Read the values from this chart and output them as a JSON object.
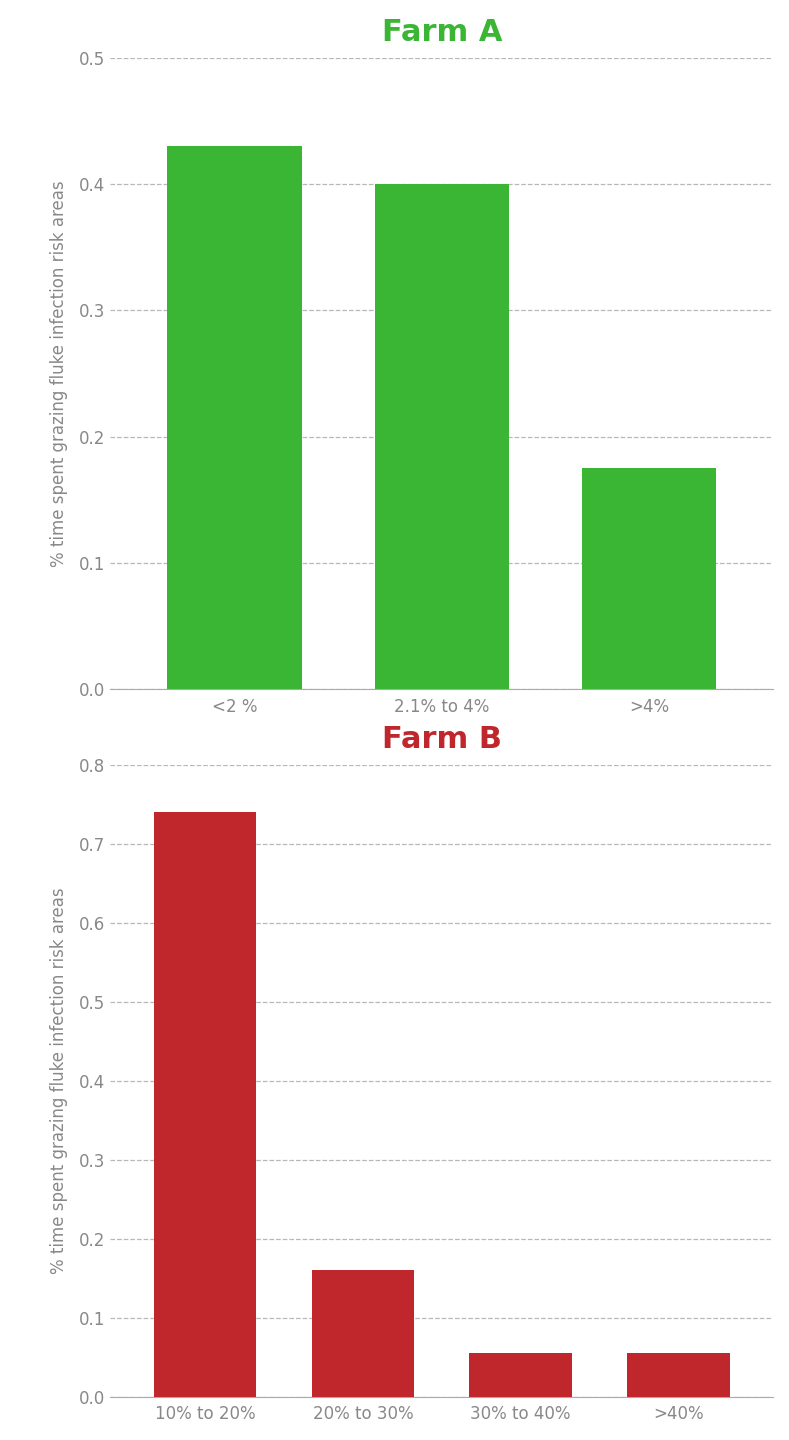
{
  "farm_a": {
    "title": "Farm A",
    "title_color": "#3ab534",
    "categories": [
      "<2 %",
      "2.1% to 4%",
      ">4%"
    ],
    "values": [
      0.43,
      0.4,
      0.175
    ],
    "bar_color": "#3ab534",
    "ylim": [
      0,
      0.5
    ],
    "yticks": [
      0.0,
      0.1,
      0.2,
      0.3,
      0.4,
      0.5
    ],
    "ylabel": "% time spent grazing fluke infection risk areas"
  },
  "farm_b": {
    "title": "Farm B",
    "title_color": "#c0272d",
    "categories": [
      "10% to 20%",
      "20% to 30%",
      "30% to 40%",
      ">40%"
    ],
    "values": [
      0.74,
      0.16,
      0.055,
      0.055
    ],
    "bar_color": "#c0272d",
    "ylim": [
      0,
      0.8
    ],
    "yticks": [
      0.0,
      0.1,
      0.2,
      0.3,
      0.4,
      0.5,
      0.6,
      0.7,
      0.8
    ],
    "ylabel": "% time spent grazing fluke infection risk areas"
  },
  "background_color": "#ffffff",
  "grid_color": "#b8b8b8",
  "tick_label_color": "#888888",
  "ylabel_color": "#888888",
  "title_fontsize": 22,
  "ylabel_fontsize": 12,
  "tick_fontsize": 12,
  "bar_width": 0.65
}
